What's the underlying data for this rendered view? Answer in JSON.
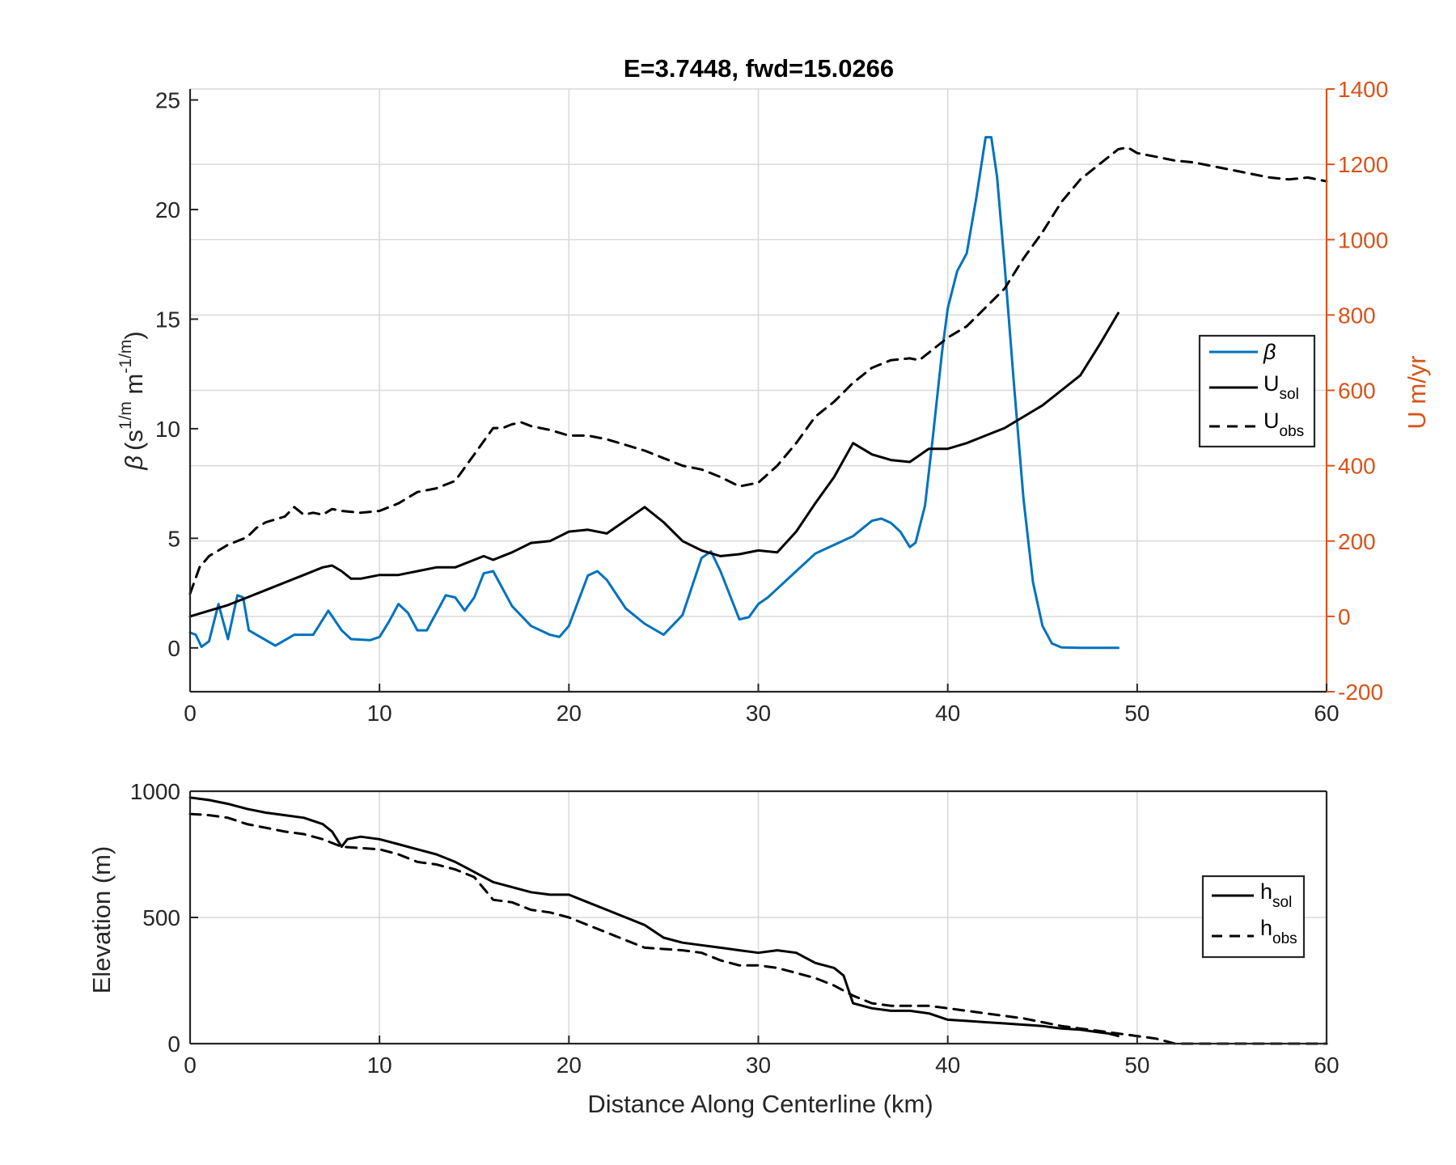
{
  "chart_data": [
    {
      "type": "line",
      "title": "E=3.7448, fwd=15.0266",
      "xlim": [
        0,
        60
      ],
      "xticks": [
        "0",
        "10",
        "20",
        "30",
        "40",
        "50",
        "60"
      ],
      "ylabel": "β (s^{1/m} m^{-1/m})",
      "ylabel_parts": {
        "symbol": "β",
        "open": "(s",
        "sup1": "1/m",
        "mid": " m",
        "sup2": "-1/m",
        "close": ")"
      },
      "ylim": [
        -2,
        25.5
      ],
      "yticks": [
        "0",
        "5",
        "10",
        "15",
        "20",
        "25"
      ],
      "y2label": "U m/yr",
      "y2lim": [
        -200,
        1400
      ],
      "y2ticks": [
        "-200",
        "0",
        "200",
        "400",
        "600",
        "800",
        "1000",
        "1200",
        "1400"
      ],
      "grid": true,
      "legend_position": "right-middle",
      "legend": [
        {
          "main": "β",
          "sub": "",
          "style": "solid",
          "color": "#0072bd"
        },
        {
          "main": "U",
          "sub": "sol",
          "style": "solid",
          "color": "#000000"
        },
        {
          "main": "U",
          "sub": "obs",
          "style": "dashed",
          "color": "#000000"
        }
      ],
      "series": [
        {
          "name": "β",
          "axis": "left",
          "color": "#0072bd",
          "style": "solid",
          "x": [
            0,
            0.3,
            0.6,
            1.0,
            1.5,
            2.0,
            2.5,
            2.8,
            3.1,
            3.5,
            4.5,
            5.5,
            6.5,
            7.3,
            8.0,
            8.5,
            9.5,
            10.0,
            10.5,
            11.0,
            11.5,
            12.0,
            12.5,
            13.0,
            13.5,
            14.0,
            14.5,
            15.0,
            15.5,
            16.0,
            17.0,
            18.0,
            19.0,
            19.5,
            20.0,
            21.0,
            21.5,
            22.0,
            23.0,
            24.0,
            25.0,
            26.0,
            27.0,
            27.5,
            28.0,
            29.0,
            29.5,
            30.0,
            30.5,
            31.0,
            32.0,
            33.0,
            34.0,
            35.0,
            36.0,
            36.5,
            37.0,
            37.5,
            38.0,
            38.3,
            38.8,
            39.2,
            39.7,
            40.0,
            40.5,
            41.0,
            41.5,
            42.0,
            42.3,
            42.6,
            43.0,
            43.5,
            44.0,
            44.5,
            45.0,
            45.5,
            46.0,
            47.0,
            48.0,
            49.0
          ],
          "y": [
            0.7,
            0.6,
            0.05,
            0.3,
            2.0,
            0.4,
            2.4,
            2.3,
            0.8,
            0.6,
            0.1,
            0.6,
            0.6,
            1.7,
            0.8,
            0.4,
            0.35,
            0.5,
            1.2,
            2.0,
            1.6,
            0.8,
            0.8,
            1.6,
            2.4,
            2.3,
            1.7,
            2.3,
            3.4,
            3.5,
            1.9,
            1.0,
            0.6,
            0.5,
            1.0,
            3.3,
            3.5,
            3.1,
            1.8,
            1.1,
            0.6,
            1.5,
            4.1,
            4.4,
            3.5,
            1.3,
            1.4,
            2.0,
            2.3,
            2.7,
            3.5,
            4.3,
            4.7,
            5.1,
            5.8,
            5.9,
            5.7,
            5.3,
            4.6,
            4.8,
            6.5,
            9.5,
            13.5,
            15.5,
            17.2,
            18.0,
            20.5,
            23.3,
            23.3,
            21.5,
            17.5,
            12.0,
            6.8,
            3.0,
            1.0,
            0.2,
            0.02,
            0.0,
            0.0,
            0.0
          ]
        },
        {
          "name": "U sol",
          "axis": "right",
          "color": "#000000",
          "style": "solid",
          "x": [
            0,
            1,
            2,
            3,
            4,
            5,
            6,
            7,
            7.5,
            8,
            8.5,
            9,
            10,
            11,
            12,
            13,
            14,
            15,
            15.5,
            16,
            17,
            18,
            19,
            20,
            21,
            22,
            23,
            24,
            25,
            26,
            27,
            28,
            29,
            30,
            31,
            32,
            33,
            34,
            35,
            36,
            37,
            38,
            39,
            40,
            41,
            42,
            43,
            44,
            45,
            46,
            47,
            48,
            49
          ],
          "y": [
            0,
            15,
            30,
            50,
            70,
            90,
            110,
            130,
            135,
            120,
            100,
            100,
            110,
            110,
            120,
            130,
            130,
            150,
            160,
            150,
            170,
            195,
            200,
            225,
            230,
            220,
            255,
            290,
            250,
            200,
            175,
            160,
            165,
            175,
            170,
            225,
            300,
            370,
            460,
            430,
            415,
            410,
            445,
            445,
            460,
            480,
            500,
            530,
            560,
            600,
            640,
            720,
            805
          ]
        },
        {
          "name": "U obs",
          "axis": "right",
          "color": "#000000",
          "style": "dashed",
          "x": [
            0,
            0.5,
            1,
            2,
            3,
            3.5,
            4,
            5,
            5.5,
            6,
            6.5,
            7,
            7.5,
            8,
            9,
            10,
            11,
            12,
            13,
            14,
            15,
            16,
            16.5,
            17,
            17.5,
            18,
            18.5,
            19,
            20,
            21,
            22,
            23,
            24,
            25,
            26,
            27,
            27.5,
            28,
            29,
            30,
            31,
            32,
            33,
            34,
            35,
            36,
            37,
            38,
            38.5,
            39,
            40,
            41,
            42,
            43,
            44,
            45,
            46,
            47,
            48,
            48.5,
            49,
            49.5,
            50,
            51,
            52,
            53,
            54,
            55,
            56,
            57,
            58,
            59,
            60
          ],
          "y": [
            60,
            130,
            160,
            190,
            210,
            235,
            250,
            265,
            290,
            270,
            275,
            270,
            285,
            280,
            275,
            280,
            300,
            330,
            340,
            360,
            430,
            500,
            500,
            510,
            515,
            505,
            500,
            495,
            480,
            480,
            470,
            455,
            440,
            420,
            400,
            390,
            380,
            370,
            345,
            355,
            400,
            460,
            530,
            570,
            620,
            660,
            680,
            685,
            680,
            700,
            740,
            770,
            820,
            870,
            950,
            1020,
            1100,
            1160,
            1200,
            1220,
            1240,
            1245,
            1230,
            1220,
            1210,
            1205,
            1195,
            1185,
            1175,
            1165,
            1160,
            1165,
            1155
          ]
        }
      ]
    },
    {
      "type": "line",
      "title": "",
      "xlabel": "Distance Along Centerline (km)",
      "ylabel": "Elevation (m)",
      "xlim": [
        0,
        60
      ],
      "xticks": [
        "0",
        "10",
        "20",
        "30",
        "40",
        "50",
        "60"
      ],
      "ylim": [
        0,
        1000
      ],
      "yticks": [
        "0",
        "500",
        "1000"
      ],
      "grid": true,
      "legend_position": "right-middle",
      "legend": [
        {
          "main": "h",
          "sub": "sol",
          "style": "solid",
          "color": "#000000"
        },
        {
          "main": "h",
          "sub": "obs",
          "style": "dashed",
          "color": "#000000"
        }
      ],
      "series": [
        {
          "name": "h sol",
          "color": "#000000",
          "style": "solid",
          "x": [
            0,
            1,
            2,
            3,
            4,
            5,
            6,
            7,
            7.5,
            8,
            8.3,
            9,
            10,
            11,
            12,
            13,
            14,
            14.5,
            15,
            15.5,
            16,
            17,
            18,
            19,
            20,
            21,
            22,
            23,
            24,
            25,
            26,
            27,
            28,
            29,
            30,
            31,
            32,
            33,
            34,
            34.5,
            35,
            36,
            37,
            38,
            39,
            40,
            41,
            42,
            43,
            44,
            45,
            46,
            47,
            48,
            48.5,
            49
          ],
          "y": [
            975,
            965,
            950,
            930,
            915,
            905,
            895,
            870,
            840,
            780,
            810,
            820,
            810,
            790,
            770,
            750,
            720,
            700,
            680,
            660,
            640,
            620,
            600,
            590,
            590,
            560,
            530,
            500,
            470,
            420,
            400,
            390,
            380,
            370,
            360,
            370,
            360,
            320,
            300,
            270,
            160,
            140,
            130,
            130,
            120,
            95,
            90,
            85,
            80,
            75,
            70,
            60,
            55,
            45,
            40,
            30
          ]
        },
        {
          "name": "h obs",
          "color": "#000000",
          "style": "dashed",
          "x": [
            0,
            1,
            2,
            3,
            4,
            5,
            6,
            7,
            8,
            9,
            10,
            11,
            12,
            13,
            14,
            15,
            16,
            17,
            18,
            19,
            20,
            21,
            22,
            23,
            24,
            25,
            26,
            27,
            28,
            29,
            30,
            31,
            32,
            33,
            34,
            35,
            36,
            37,
            38,
            39,
            40,
            41,
            42,
            43,
            44,
            45,
            46,
            47,
            48,
            49,
            50,
            51,
            52,
            53,
            54,
            55,
            56,
            57,
            58,
            59,
            60
          ],
          "y": [
            910,
            905,
            895,
            870,
            855,
            840,
            830,
            810,
            780,
            775,
            770,
            750,
            720,
            710,
            690,
            660,
            570,
            560,
            530,
            520,
            500,
            470,
            440,
            410,
            380,
            375,
            370,
            360,
            330,
            310,
            310,
            300,
            280,
            260,
            230,
            190,
            160,
            150,
            150,
            150,
            140,
            130,
            120,
            110,
            100,
            85,
            70,
            60,
            50,
            40,
            30,
            20,
            0,
            0,
            0,
            0,
            0,
            0,
            0,
            0,
            0
          ]
        }
      ]
    }
  ]
}
